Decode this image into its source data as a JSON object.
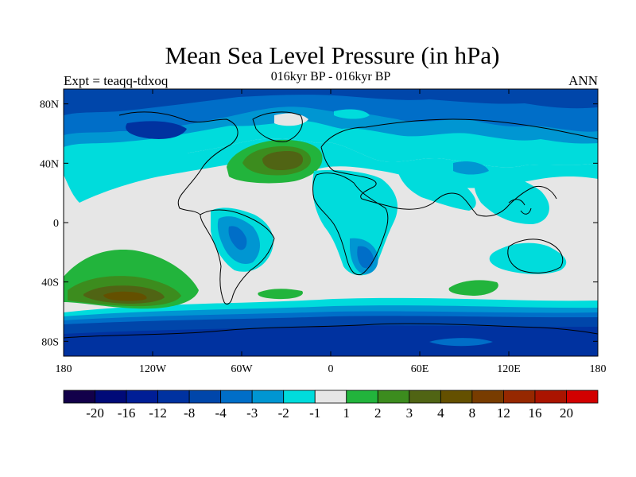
{
  "title": "Mean Sea Level Pressure (in hPa)",
  "subtitle": "016kyr BP - 016kyr BP",
  "left_string": "Expt = teaqq-tdxoq",
  "right_string": "ANN",
  "map": {
    "projection": "cylindrical-equidistant",
    "lon_range": [
      -180,
      180
    ],
    "lat_range": [
      -90,
      90
    ],
    "background_color": "#e6e6e6",
    "x_tick_labels": [
      "180",
      "120W",
      "60W",
      "0",
      "60E",
      "120E",
      "180"
    ],
    "y_tick_labels": [
      "80N",
      "40N",
      "0",
      "40S",
      "80S"
    ]
  },
  "colorbar": {
    "orientation": "horizontal",
    "colors": [
      "#12004a",
      "#000a78",
      "#001e96",
      "#0032a0",
      "#0046aa",
      "#006ec8",
      "#0096d2",
      "#00dcdc",
      "#e6e6e6",
      "#22b43c",
      "#3c8c1e",
      "#506414",
      "#645000",
      "#783c00",
      "#962800",
      "#aa1400",
      "#d20000"
    ],
    "labels": [
      "-20",
      "-16",
      "-12",
      "-8",
      "-4",
      "-3",
      "-2",
      "-1",
      "1",
      "2",
      "3",
      "4",
      "8",
      "12",
      "16",
      "20"
    ]
  }
}
